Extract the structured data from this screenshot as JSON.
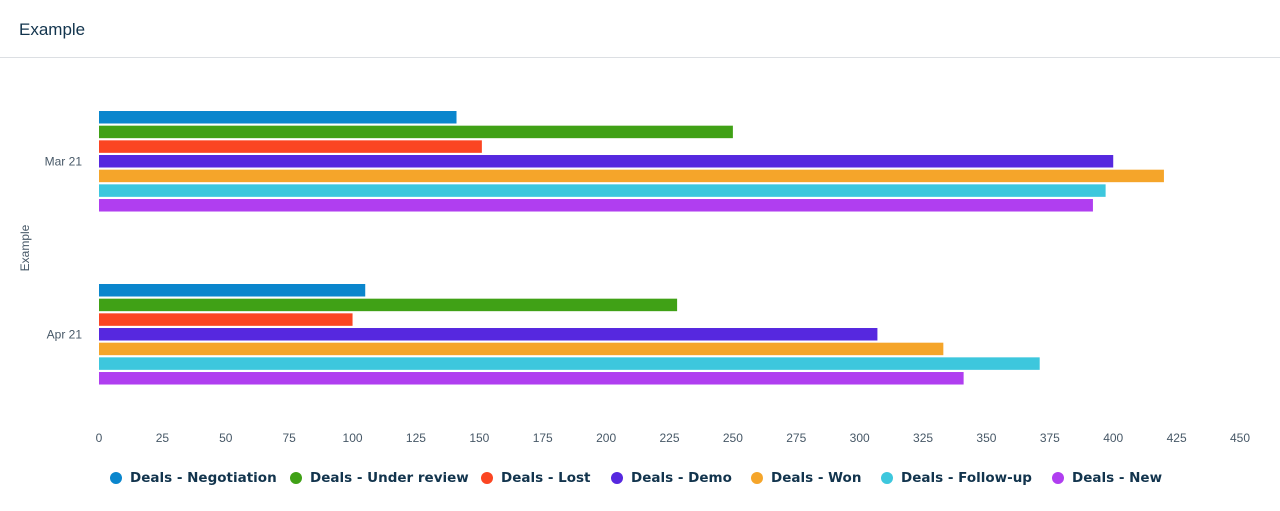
{
  "header": {
    "title": "Example"
  },
  "chart_data": {
    "type": "bar",
    "orientation": "horizontal",
    "title": "Example",
    "ylabel": "Example",
    "xlabel": "",
    "categories": [
      "Mar 21",
      "Apr 21"
    ],
    "xlim": [
      0,
      450
    ],
    "xticks": [
      0,
      25,
      50,
      75,
      100,
      125,
      150,
      175,
      200,
      225,
      250,
      275,
      300,
      325,
      350,
      375,
      400,
      425,
      450
    ],
    "grid": false,
    "legend": "bottom",
    "series": [
      {
        "name": "Deals - Negotiation",
        "color": "#0a86cd",
        "values": [
          141,
          105
        ]
      },
      {
        "name": "Deals - Under review",
        "color": "#40a116",
        "values": [
          250,
          228
        ]
      },
      {
        "name": "Deals - Lost",
        "color": "#fb4522",
        "values": [
          151,
          100
        ]
      },
      {
        "name": "Deals - Demo",
        "color": "#5628df",
        "values": [
          400,
          307
        ]
      },
      {
        "name": "Deals - Won",
        "color": "#f5a52a",
        "values": [
          420,
          333
        ]
      },
      {
        "name": "Deals - Follow-up",
        "color": "#3dc7dd",
        "values": [
          397,
          371
        ]
      },
      {
        "name": "Deals - New",
        "color": "#b03ef0",
        "values": [
          392,
          341
        ]
      }
    ]
  }
}
